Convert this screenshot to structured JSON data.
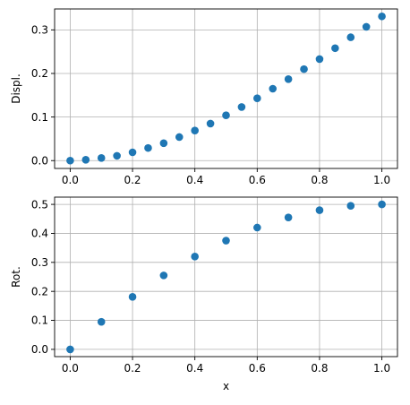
{
  "chart_data": [
    {
      "type": "scatter",
      "xlabel": "",
      "ylabel": "Displ.",
      "xlim": [
        -0.05,
        1.05
      ],
      "ylim": [
        -0.018,
        0.348
      ],
      "xticks": [
        0.0,
        0.2,
        0.4,
        0.6,
        0.8,
        1.0
      ],
      "xtick_labels": [
        "0.0",
        "0.2",
        "0.4",
        "0.6",
        "0.8",
        "1.0"
      ],
      "yticks": [
        0.0,
        0.1,
        0.2,
        0.3
      ],
      "ytick_labels": [
        "0.0",
        "0.1",
        "0.2",
        "0.3"
      ],
      "grid": true,
      "color": "#1f77b4",
      "x": [
        0.0,
        0.05,
        0.1,
        0.15,
        0.2,
        0.25,
        0.3,
        0.35,
        0.4,
        0.45,
        0.5,
        0.55,
        0.6,
        0.65,
        0.7,
        0.75,
        0.8,
        0.85,
        0.9,
        0.95,
        1.0
      ],
      "y": [
        0.0,
        0.002,
        0.006,
        0.011,
        0.019,
        0.029,
        0.04,
        0.054,
        0.069,
        0.085,
        0.104,
        0.123,
        0.143,
        0.165,
        0.187,
        0.21,
        0.233,
        0.258,
        0.283,
        0.307,
        0.331
      ]
    },
    {
      "type": "scatter",
      "xlabel": "x",
      "ylabel": "Rot.",
      "xlim": [
        -0.05,
        1.05
      ],
      "ylim": [
        -0.025,
        0.525
      ],
      "xticks": [
        0.0,
        0.2,
        0.4,
        0.6,
        0.8,
        1.0
      ],
      "xtick_labels": [
        "0.0",
        "0.2",
        "0.4",
        "0.6",
        "0.8",
        "1.0"
      ],
      "yticks": [
        0.0,
        0.1,
        0.2,
        0.3,
        0.4,
        0.5
      ],
      "ytick_labels": [
        "0.0",
        "0.1",
        "0.2",
        "0.3",
        "0.4",
        "0.5"
      ],
      "grid": true,
      "color": "#1f77b4",
      "x": [
        0.0,
        0.1,
        0.2,
        0.3,
        0.4,
        0.5,
        0.6,
        0.7,
        0.8,
        0.9,
        1.0
      ],
      "y": [
        0.0,
        0.095,
        0.181,
        0.255,
        0.32,
        0.375,
        0.42,
        0.455,
        0.48,
        0.495,
        0.5
      ]
    }
  ]
}
